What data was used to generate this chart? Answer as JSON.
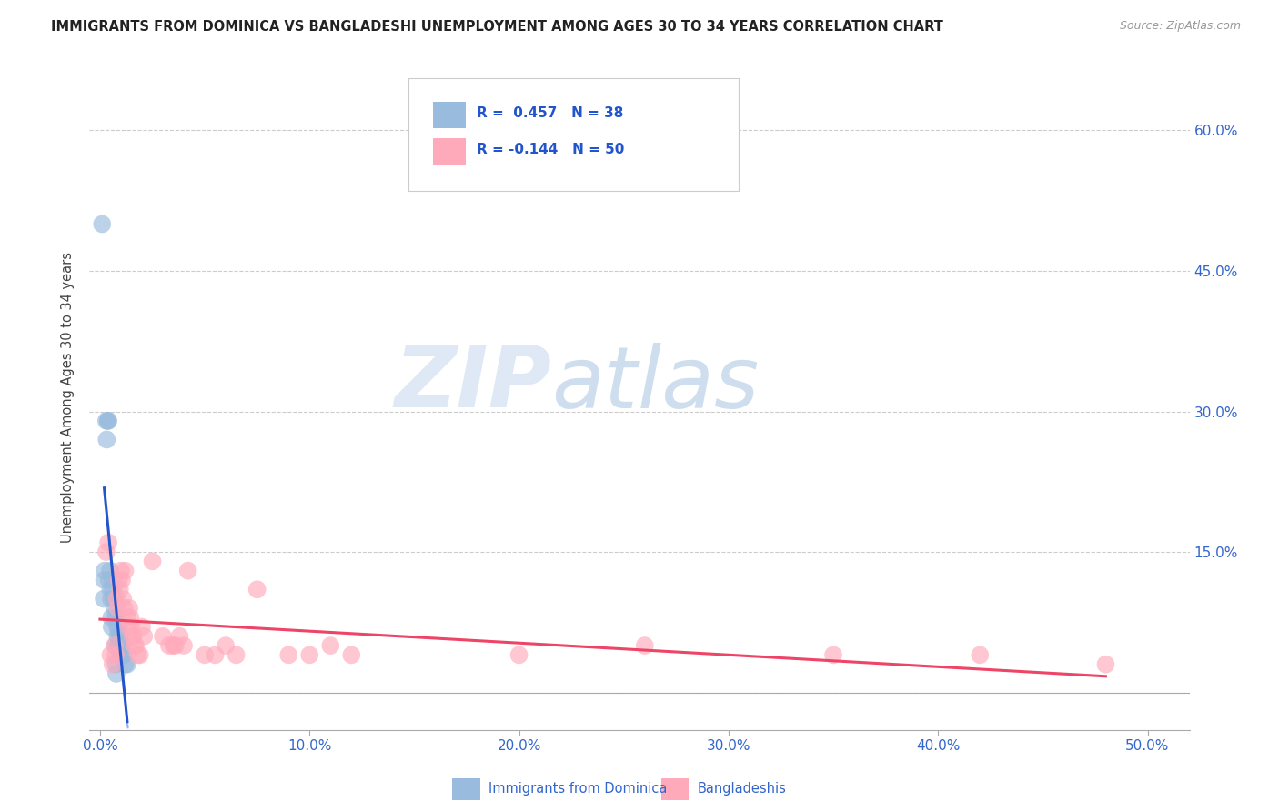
{
  "title": "IMMIGRANTS FROM DOMINICA VS BANGLADESHI UNEMPLOYMENT AMONG AGES 30 TO 34 YEARS CORRELATION CHART",
  "source": "Source: ZipAtlas.com",
  "ylabel": "Unemployment Among Ages 30 to 34 years",
  "yticks": [
    0.0,
    0.15,
    0.3,
    0.45,
    0.6
  ],
  "ytick_labels": [
    "",
    "15.0%",
    "30.0%",
    "45.0%",
    "60.0%"
  ],
  "xticks": [
    0.0,
    0.1,
    0.2,
    0.3,
    0.4,
    0.5
  ],
  "xtick_labels": [
    "0.0%",
    "10.0%",
    "20.0%",
    "30.0%",
    "40.0%",
    "50.0%"
  ],
  "xlim": [
    -0.005,
    0.52
  ],
  "ylim": [
    -0.04,
    0.67
  ],
  "legend_label1": "Immigrants from Dominica",
  "legend_label2": "Bangladeshis",
  "blue_color": "#99bbdd",
  "pink_color": "#ffaabb",
  "blue_line_color": "#2255cc",
  "pink_line_color": "#ee4466",
  "axis_label_color": "#3366CC",
  "watermark_zip": "ZIP",
  "watermark_atlas": "atlas",
  "blue_scatter": [
    [
      0.001,
      0.5
    ],
    [
      0.0018,
      0.1
    ],
    [
      0.002,
      0.12
    ],
    [
      0.0022,
      0.13
    ],
    [
      0.003,
      0.29
    ],
    [
      0.0032,
      0.27
    ],
    [
      0.0038,
      0.29
    ],
    [
      0.004,
      0.29
    ],
    [
      0.0042,
      0.12
    ],
    [
      0.0048,
      0.13
    ],
    [
      0.005,
      0.11
    ],
    [
      0.0052,
      0.1
    ],
    [
      0.0054,
      0.08
    ],
    [
      0.0056,
      0.07
    ],
    [
      0.006,
      0.12
    ],
    [
      0.0062,
      0.11
    ],
    [
      0.0065,
      0.1
    ],
    [
      0.0068,
      0.1
    ],
    [
      0.007,
      0.09
    ],
    [
      0.0072,
      0.08
    ],
    [
      0.0074,
      0.05
    ],
    [
      0.0076,
      0.03
    ],
    [
      0.0078,
      0.02
    ],
    [
      0.008,
      0.08
    ],
    [
      0.0082,
      0.07
    ],
    [
      0.0084,
      0.06
    ],
    [
      0.0086,
      0.05
    ],
    [
      0.009,
      0.07
    ],
    [
      0.0092,
      0.06
    ],
    [
      0.0094,
      0.05
    ],
    [
      0.0096,
      0.04
    ],
    [
      0.01,
      0.06
    ],
    [
      0.0102,
      0.05
    ],
    [
      0.0104,
      0.04
    ],
    [
      0.011,
      0.05
    ],
    [
      0.0112,
      0.04
    ],
    [
      0.012,
      0.03
    ],
    [
      0.013,
      0.03
    ]
  ],
  "pink_scatter": [
    [
      0.003,
      0.15
    ],
    [
      0.004,
      0.16
    ],
    [
      0.005,
      0.04
    ],
    [
      0.006,
      0.03
    ],
    [
      0.007,
      0.05
    ],
    [
      0.0075,
      0.04
    ],
    [
      0.008,
      0.1
    ],
    [
      0.0085,
      0.09
    ],
    [
      0.009,
      0.12
    ],
    [
      0.0095,
      0.11
    ],
    [
      0.01,
      0.13
    ],
    [
      0.0105,
      0.12
    ],
    [
      0.011,
      0.1
    ],
    [
      0.0115,
      0.09
    ],
    [
      0.012,
      0.13
    ],
    [
      0.013,
      0.08
    ],
    [
      0.0135,
      0.07
    ],
    [
      0.014,
      0.09
    ],
    [
      0.0145,
      0.08
    ],
    [
      0.015,
      0.07
    ],
    [
      0.0155,
      0.06
    ],
    [
      0.016,
      0.06
    ],
    [
      0.0165,
      0.05
    ],
    [
      0.017,
      0.05
    ],
    [
      0.018,
      0.04
    ],
    [
      0.019,
      0.04
    ],
    [
      0.02,
      0.07
    ],
    [
      0.021,
      0.06
    ],
    [
      0.025,
      0.14
    ],
    [
      0.03,
      0.06
    ],
    [
      0.033,
      0.05
    ],
    [
      0.035,
      0.05
    ],
    [
      0.036,
      0.05
    ],
    [
      0.038,
      0.06
    ],
    [
      0.04,
      0.05
    ],
    [
      0.042,
      0.13
    ],
    [
      0.05,
      0.04
    ],
    [
      0.055,
      0.04
    ],
    [
      0.06,
      0.05
    ],
    [
      0.065,
      0.04
    ],
    [
      0.075,
      0.11
    ],
    [
      0.09,
      0.04
    ],
    [
      0.1,
      0.04
    ],
    [
      0.11,
      0.05
    ],
    [
      0.12,
      0.04
    ],
    [
      0.2,
      0.04
    ],
    [
      0.26,
      0.05
    ],
    [
      0.35,
      0.04
    ],
    [
      0.42,
      0.04
    ],
    [
      0.48,
      0.03
    ]
  ]
}
